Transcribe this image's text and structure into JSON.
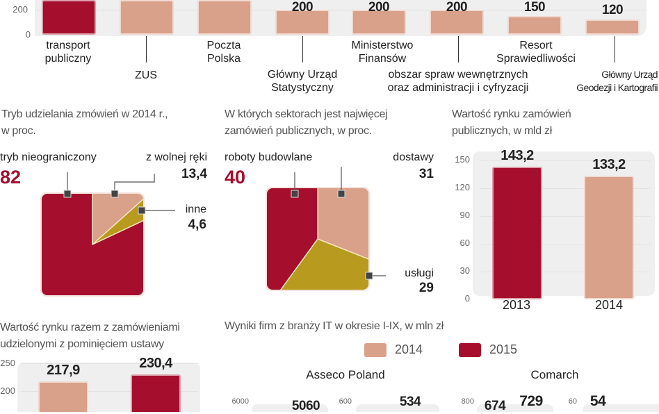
{
  "colors": {
    "dark_red": "#a50f2d",
    "salmon": "#d9a08a",
    "gold": "#b89a1e",
    "panel": "#efefef"
  },
  "chart_data": [
    {
      "type": "bar",
      "yticks": [
        "0",
        "200"
      ],
      "categories": [
        "transport\npubliczny",
        "ZUS",
        "Poczta\nPolska",
        "Główny Urząd\nStatystyczny",
        "Ministerstwo\nFinansów",
        "obszar spraw wewnętrznych\noraz administracji i cyfryzacji",
        "Resort\nSprawiedliwości",
        "Główny Urząd\nGeodezji i Kartografii"
      ],
      "values": [
        null,
        null,
        null,
        200,
        200,
        200,
        150,
        120
      ],
      "value_labels": [
        "",
        "",
        "",
        "200",
        "200",
        "200",
        "150",
        "120"
      ],
      "bar_colors": [
        "#a50f2d",
        "#d9a08a",
        "#d9a08a",
        "#d9a08a",
        "#d9a08a",
        "#d9a08a",
        "#d9a08a",
        "#d9a08a"
      ]
    },
    {
      "type": "pie",
      "title": "Tryb udzielania zmówień w 2014 r.,\nw proc.",
      "slices": [
        {
          "name": "z wolnej ręki",
          "value": 13.4,
          "label": "13,4",
          "color": "#d9a08a"
        },
        {
          "name": "inne",
          "value": 4.6,
          "label": "4,6",
          "color": "#b89a1e"
        },
        {
          "name": "tryb nieograniczony",
          "value": 82,
          "label": "82",
          "color": "#a50f2d"
        }
      ]
    },
    {
      "type": "pie",
      "title": "W których sektorach jest najwięcej\nzamówień publicznych, w proc.",
      "slices": [
        {
          "name": "dostawy",
          "value": 31,
          "label": "31",
          "color": "#d9a08a"
        },
        {
          "name": "usługi",
          "value": 29,
          "label": "29",
          "color": "#b89a1e"
        },
        {
          "name": "roboty budowlane",
          "value": 40,
          "label": "40",
          "color": "#a50f2d"
        }
      ]
    },
    {
      "type": "bar",
      "title": "Wartość rynku zamówień\npublicznych, w mld zł",
      "categories": [
        "2013",
        "2014"
      ],
      "values": [
        143.2,
        133.2
      ],
      "value_labels": [
        "143,2",
        "133,2"
      ],
      "bar_colors": [
        "#a50f2d",
        "#d9a08a"
      ],
      "yticks": [
        "0",
        "30",
        "60",
        "90",
        "120",
        "150"
      ],
      "ylim": [
        0,
        150
      ]
    },
    {
      "type": "bar",
      "title": "Wartość rynku razem z zamówieniami\nudzielonymi z pominięciem ustawy",
      "values": [
        217.9,
        230.4
      ],
      "value_labels": [
        "217,9",
        "230,4"
      ],
      "bar_colors": [
        "#d9a08a",
        "#a50f2d"
      ],
      "yticks": [
        "200",
        "250"
      ]
    },
    {
      "type": "bar",
      "title": "Wyniki firm z branży IT w okresie I-IX, w mln zł",
      "legend": [
        {
          "name": "2014",
          "color": "#d9a08a"
        },
        {
          "name": "2015",
          "color": "#a50f2d"
        }
      ],
      "companies": [
        {
          "name": "Asseco Poland",
          "axes": [
            {
              "top_tick": "6000",
              "value_labels": [
                "5060"
              ]
            },
            {
              "top_tick": "600",
              "value_labels": [
                "534"
              ]
            }
          ]
        },
        {
          "name": "Comarch",
          "axes": [
            {
              "top_tick": "800",
              "value_labels": [
                "674",
                "729"
              ]
            },
            {
              "top_tick": "60",
              "value_labels": [
                "54"
              ]
            }
          ]
        }
      ]
    }
  ]
}
